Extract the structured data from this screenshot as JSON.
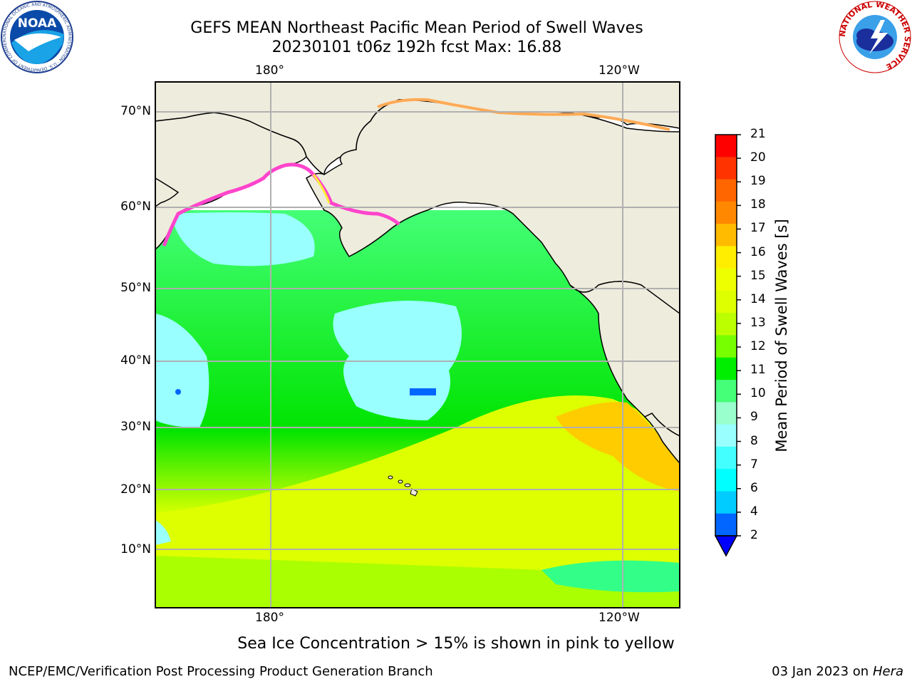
{
  "header": {
    "title_line1": "GEFS MEAN Northeast Pacific Mean Period of Swell Waves",
    "title_line2": "20230101 t06z 192h fcst   Max: 16.88"
  },
  "map": {
    "lon_labels": [
      "180°",
      "120°W"
    ],
    "lat_labels": [
      "70°N",
      "60°N",
      "50°N",
      "40°N",
      "30°N",
      "20°N",
      "10°N"
    ],
    "land_color": "#eeecdc",
    "gridline_color": "#b0b0b0"
  },
  "colorbar": {
    "label": "Mean Period of Swell Waves [s]",
    "ticks": [
      "21",
      "20",
      "19",
      "18",
      "17",
      "16",
      "15",
      "14",
      "13",
      "12",
      "11",
      "10",
      "9",
      "8",
      "7",
      "6",
      "4",
      "2"
    ],
    "colors": [
      "#ff0000",
      "#ff3300",
      "#ff6600",
      "#ff8800",
      "#ffbb00",
      "#ffee00",
      "#eeff00",
      "#ddff00",
      "#bbff00",
      "#77ff00",
      "#00ee00",
      "#44ff77",
      "#99ffcc",
      "#99ffff",
      "#44ffff",
      "#00ffff",
      "#00ccff",
      "#0066ff",
      "#0000ff"
    ]
  },
  "caption": "Sea Ice Concentration > 15% is shown in pink to yellow",
  "footer": {
    "left": "NCEP/EMC/Verification Post Processing Product Generation Branch",
    "right_date": "03 Jan 2023 on ",
    "right_host": "Hera"
  },
  "logos": {
    "noaa_text": "NOAA",
    "noaa_ring_text": "NATIONAL OCEANIC AND ATMOSPHERIC ADMINISTRATION · U.S. DEPARTMENT OF COMMERCE",
    "nws_ring_text": "NATIONAL WEATHER SERVICE"
  }
}
